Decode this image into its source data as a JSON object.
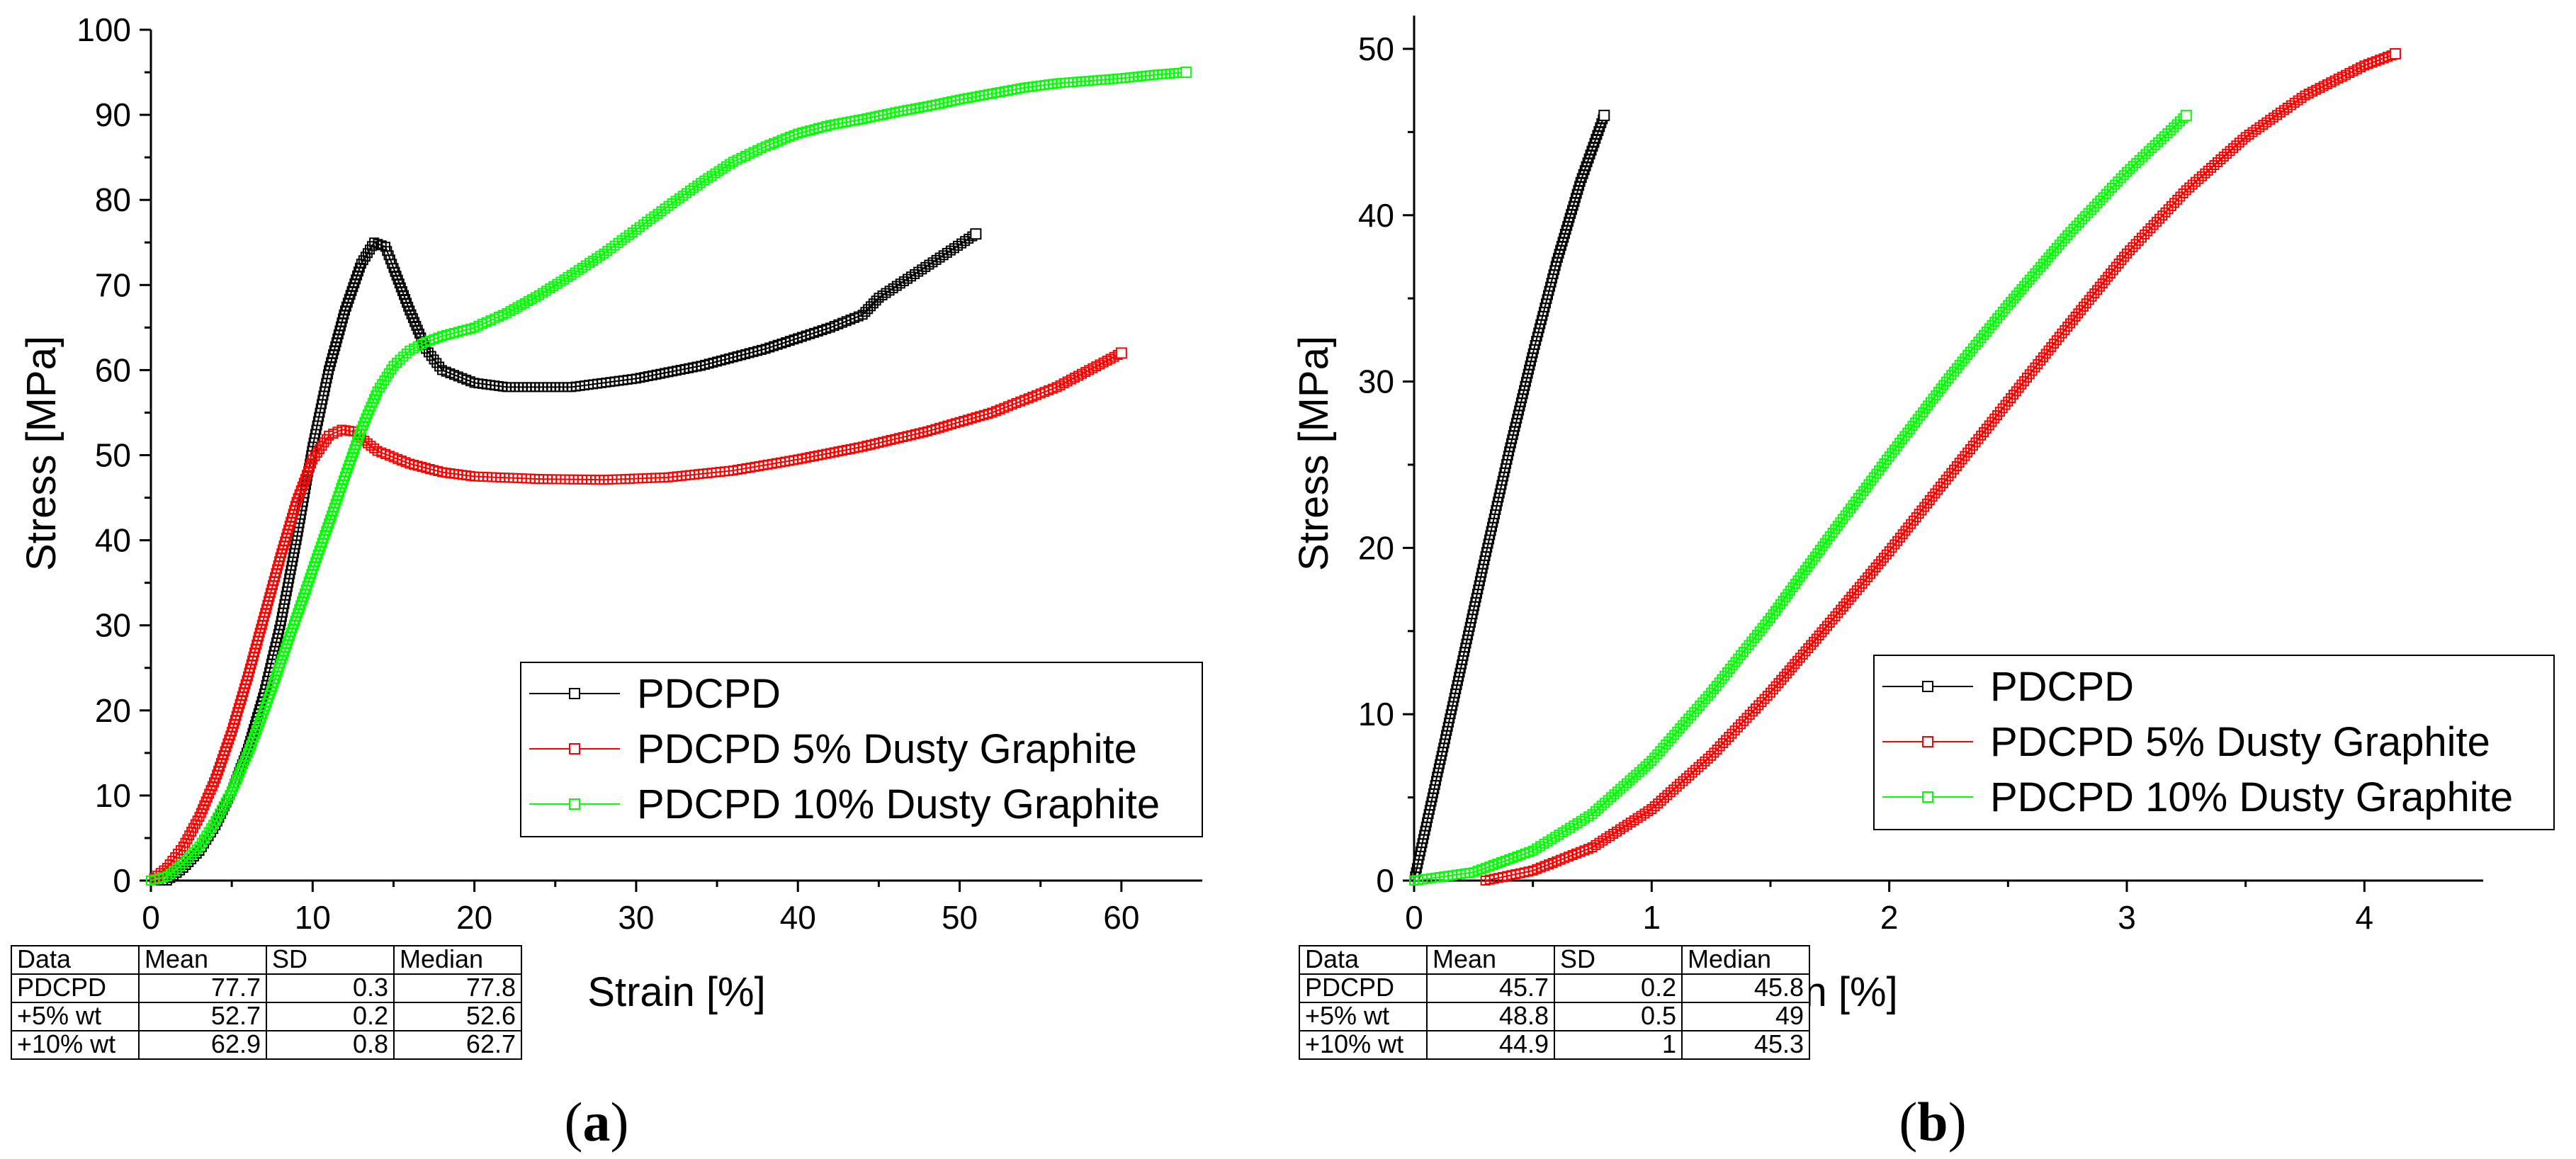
{
  "colors": {
    "axis": "#000000",
    "series": [
      "#000000",
      "#ff0000",
      "#00ff00"
    ]
  },
  "chart_data": [
    {
      "type": "line",
      "panel": "a",
      "panel_label": {
        "open": "(",
        "letter": "a",
        "close": ")"
      },
      "xlabel": "Strain [%]",
      "ylabel": "Stress [MPa]",
      "xlim": [
        0,
        65
      ],
      "ylim": [
        0,
        100
      ],
      "xticks": [
        0,
        10,
        20,
        30,
        40,
        50,
        60
      ],
      "yticks": [
        0,
        10,
        20,
        30,
        40,
        50,
        60,
        70,
        80,
        90,
        100
      ],
      "xtick_labels": [
        "0",
        "10",
        "20",
        "30",
        "40",
        "50",
        "60"
      ],
      "ytick_labels": [
        "0",
        "10",
        "20",
        "30",
        "40",
        "50",
        "60",
        "70",
        "80",
        "90",
        "100"
      ],
      "grid": false,
      "legend_position": "lower-right",
      "series": [
        {
          "name": "PDCPD",
          "color": "#000000",
          "x": [
            0,
            1,
            2,
            3,
            4,
            5,
            6,
            7,
            8,
            9,
            10,
            11,
            12,
            13,
            13.8,
            14.5,
            15,
            16,
            17,
            18,
            20,
            22,
            24,
            26,
            30,
            34,
            38,
            42,
            44,
            45,
            47,
            49,
            51
          ],
          "y": [
            0,
            0,
            1.5,
            3.5,
            6.5,
            10.5,
            15.5,
            22,
            30,
            40,
            51,
            60,
            67,
            72.5,
            75,
            74.5,
            72,
            67,
            62.5,
            60,
            58.5,
            58,
            58,
            58,
            59,
            60.5,
            62.5,
            65,
            66.5,
            68.5,
            71,
            73.5,
            76
          ]
        },
        {
          "name": "PDCPD 5% Dusty Graphite",
          "color": "#ff0000",
          "x": [
            0,
            1,
            2,
            3,
            4,
            5,
            6,
            7,
            8,
            9,
            10,
            11,
            11.8,
            12.5,
            13,
            14,
            16,
            18,
            20,
            24,
            28,
            32,
            36,
            40,
            44,
            48,
            52,
            56,
            58,
            60
          ],
          "y": [
            0,
            1.5,
            4,
            7.5,
            12,
            17.5,
            24,
            31,
            38,
            44.5,
            49.5,
            52.3,
            53,
            52.8,
            52,
            50.5,
            49,
            48,
            47.5,
            47.2,
            47.1,
            47.4,
            48.2,
            49.5,
            51,
            52.8,
            55,
            58,
            60,
            62
          ]
        },
        {
          "name": "PDCPD 10% Dusty Graphite",
          "color": "#00ff00",
          "x": [
            0,
            1,
            2,
            3,
            4,
            5,
            6,
            7,
            8,
            9,
            10,
            11,
            12,
            13,
            14,
            15,
            16,
            17,
            18,
            20,
            22,
            24,
            26,
            28,
            30,
            32,
            34,
            36,
            38,
            40,
            42,
            44,
            46,
            48,
            50,
            52,
            54,
            56,
            58,
            60,
            62,
            64
          ],
          "y": [
            0,
            0.5,
            2,
            4,
            7,
            10.5,
            15,
            20,
            25.5,
            31,
            36.5,
            42,
            47.5,
            53,
            57.5,
            60.5,
            62.3,
            63.3,
            64,
            65,
            66.7,
            68.8,
            71.2,
            73.7,
            76.5,
            79.3,
            82,
            84.5,
            86.3,
            87.8,
            88.8,
            89.5,
            90.3,
            91,
            91.8,
            92.5,
            93.2,
            93.7,
            94,
            94.3,
            94.7,
            95
          ]
        }
      ],
      "table": {
        "headers": [
          "Data",
          "Mean",
          "SD",
          "Median"
        ],
        "rows": [
          [
            "PDCPD",
            "77.7",
            "0.3",
            "77.8"
          ],
          [
            "+5% wt",
            "52.7",
            "0.2",
            "52.6"
          ],
          [
            "+10% wt",
            "62.9",
            "0.8",
            "62.7"
          ]
        ]
      }
    },
    {
      "type": "line",
      "panel": "b",
      "panel_label": {
        "open": "(",
        "letter": "b",
        "close": ")"
      },
      "xlabel": "Strain [%]",
      "ylabel": "Stress [MPa]",
      "xlim": [
        0,
        4.5
      ],
      "ylim": [
        0,
        52
      ],
      "xticks": [
        0,
        1,
        2,
        3,
        4
      ],
      "yticks": [
        0,
        10,
        20,
        30,
        40,
        50
      ],
      "xtick_labels": [
        "0",
        "1",
        "2",
        "3",
        "4"
      ],
      "ytick_labels": [
        "0",
        "10",
        "20",
        "30",
        "40",
        "50"
      ],
      "grid": false,
      "legend_position": "lower-right",
      "series": [
        {
          "name": "PDCPD",
          "color": "#000000",
          "x": [
            0,
            0.1,
            0.2,
            0.3,
            0.4,
            0.5,
            0.6,
            0.7,
            0.8
          ],
          "y": [
            0,
            6.5,
            13,
            19.5,
            25.8,
            31.7,
            37.2,
            42,
            46
          ]
        },
        {
          "name": "PDCPD 5% Dusty Graphite",
          "color": "#ff0000",
          "x": [
            0.3,
            0.5,
            0.75,
            1.0,
            1.25,
            1.5,
            1.75,
            2.0,
            2.25,
            2.5,
            2.75,
            3.0,
            3.25,
            3.5,
            3.75,
            4.0,
            4.13
          ],
          "y": [
            0,
            0.6,
            2,
            4.3,
            7.5,
            11.3,
            15.5,
            19.8,
            24.3,
            28.8,
            33.3,
            37.7,
            41.5,
            44.7,
            47.2,
            49,
            49.7
          ]
        },
        {
          "name": "PDCPD 10% Dusty Graphite",
          "color": "#00ff00",
          "x": [
            0,
            0.25,
            0.5,
            0.75,
            1.0,
            1.25,
            1.5,
            1.75,
            2.0,
            2.25,
            2.5,
            2.75,
            3.0,
            3.25
          ],
          "y": [
            0,
            0.5,
            1.8,
            4,
            7.2,
            11.3,
            15.8,
            20.7,
            25.5,
            30.2,
            34.6,
            38.8,
            42.6,
            46
          ]
        }
      ],
      "table": {
        "headers": [
          "Data",
          "Mean",
          "SD",
          "Median"
        ],
        "rows": [
          [
            "PDCPD",
            "45.7",
            "0.2",
            "45.8"
          ],
          [
            "+5% wt",
            "48.8",
            "0.5",
            "49"
          ],
          [
            "+10% wt",
            "44.9",
            "1",
            "45.3"
          ]
        ]
      }
    }
  ]
}
